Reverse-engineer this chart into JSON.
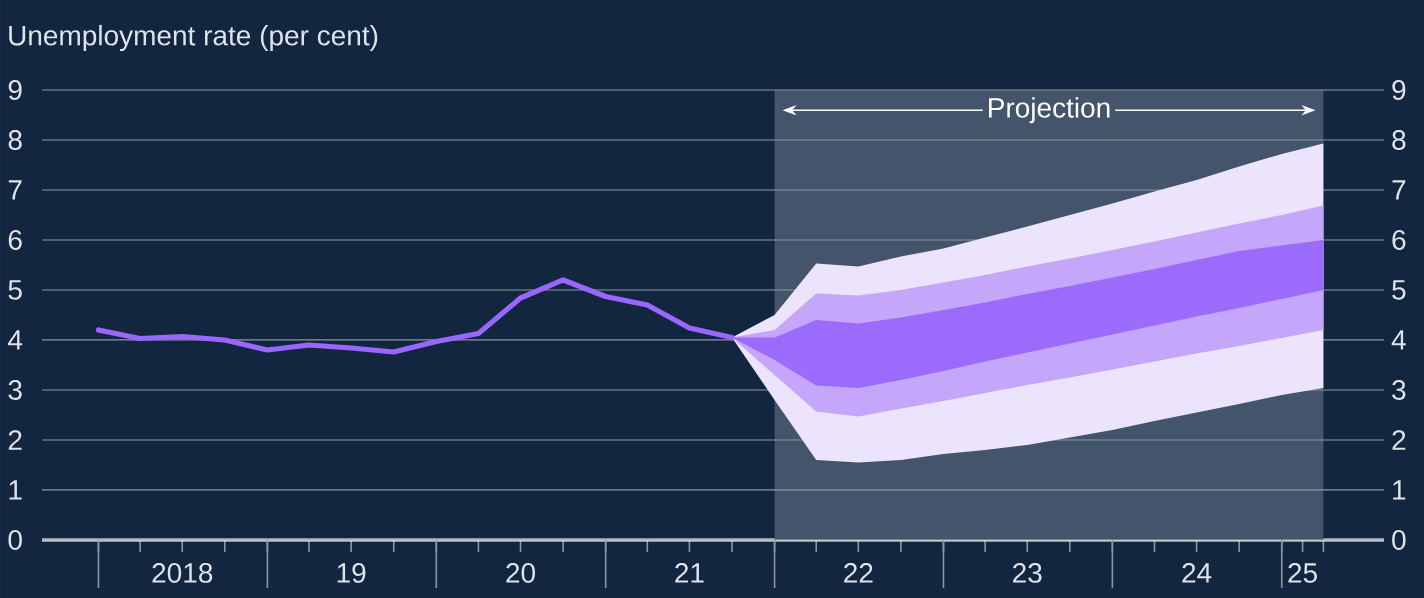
{
  "chart_data": {
    "type": "line",
    "ylabel": "Unemployment rate (per cent)",
    "xlim": [
      "2017-09-01",
      "2025-08-10"
    ],
    "xticks": [
      {
        "value": "2018-01-01",
        "label": null
      },
      {
        "value": "2018-04-01",
        "label": null
      },
      {
        "value": "2018-07-01",
        "label": "2018"
      },
      {
        "value": "2018-10-01",
        "label": null
      },
      {
        "value": "2019-01-01",
        "label": null
      },
      {
        "value": "2019-04-01",
        "label": null
      },
      {
        "value": "2019-07-01",
        "label": "19"
      },
      {
        "value": "2019-10-01",
        "label": null
      },
      {
        "value": "2020-01-01",
        "label": null
      },
      {
        "value": "2020-04-01",
        "label": null
      },
      {
        "value": "2020-07-01",
        "label": "20"
      },
      {
        "value": "2020-10-01",
        "label": null
      },
      {
        "value": "2021-01-01",
        "label": null
      },
      {
        "value": "2021-04-01",
        "label": null
      },
      {
        "value": "2021-07-01",
        "label": "21"
      },
      {
        "value": "2021-10-01",
        "label": null
      },
      {
        "value": "2022-01-01",
        "label": null
      },
      {
        "value": "2022-04-01",
        "label": null
      },
      {
        "value": "2022-07-01",
        "label": "22"
      },
      {
        "value": "2022-10-01",
        "label": null
      },
      {
        "value": "2023-01-01",
        "label": null
      },
      {
        "value": "2023-04-01",
        "label": null
      },
      {
        "value": "2023-07-01",
        "label": "23"
      },
      {
        "value": "2023-10-01",
        "label": null
      },
      {
        "value": "2024-01-01",
        "label": null
      },
      {
        "value": "2024-04-01",
        "label": null
      },
      {
        "value": "2024-07-01",
        "label": "24"
      },
      {
        "value": "2024-10-01",
        "label": null
      },
      {
        "value": "2025-01-01",
        "label": null
      },
      {
        "value": "2025-02-15",
        "label": "25"
      },
      {
        "value": "2025-04-01",
        "label": null
      }
    ],
    "ylim": [
      0,
      9
    ],
    "yticks": [
      0,
      1,
      2,
      3,
      4,
      5,
      6,
      7,
      8,
      9
    ],
    "y2lim": [
      0,
      9
    ],
    "y2ticks": [
      0,
      1,
      2,
      3,
      4,
      5,
      6,
      7,
      8,
      9
    ],
    "grid": "y",
    "bands": [
      {
        "axis": "x",
        "from": "2022-01-01",
        "to": "2025-04-01",
        "label": "Projection",
        "color": "#44546a"
      }
    ],
    "series": [
      {
        "type": "area",
        "color": "#ece4fd",
        "x": [
          "2021-10-01",
          "2022-01-01",
          "2022-04-01",
          "2022-07-01",
          "2022-10-01",
          "2023-01-01",
          "2023-04-01",
          "2023-07-01",
          "2023-10-01",
          "2024-01-01",
          "2024-04-01",
          "2024-07-01",
          "2024-10-01",
          "2025-01-01",
          "2025-04-01"
        ],
        "values": [
          null,
          null,
          null,
          null,
          null,
          null,
          null,
          null,
          null,
          null,
          null,
          null,
          null,
          null,
          null
        ],
        "lower": [
          4.05,
          2.8,
          1.6,
          1.55,
          1.6,
          1.72,
          1.8,
          1.9,
          2.05,
          2.2,
          2.38,
          2.55,
          2.72,
          2.9,
          3.04
        ],
        "upper": [
          4.05,
          4.5,
          5.53,
          5.47,
          5.67,
          5.83,
          6.05,
          6.27,
          6.5,
          6.73,
          6.97,
          7.2,
          7.47,
          7.72,
          7.93
        ]
      },
      {
        "type": "area",
        "color": "#c4a6fb",
        "x": [
          "2021-10-01",
          "2022-01-01",
          "2022-04-01",
          "2022-07-01",
          "2022-10-01",
          "2023-01-01",
          "2023-04-01",
          "2023-07-01",
          "2023-10-01",
          "2024-01-01",
          "2024-04-01",
          "2024-07-01",
          "2024-10-01",
          "2025-01-01",
          "2025-04-01"
        ],
        "values": [
          null,
          null,
          null,
          null,
          null,
          null,
          null,
          null,
          null,
          null,
          null,
          null,
          null,
          null,
          null
        ],
        "lower": [
          4.05,
          3.3,
          2.57,
          2.47,
          2.63,
          2.78,
          2.94,
          3.1,
          3.25,
          3.41,
          3.57,
          3.73,
          3.88,
          4.04,
          4.2
        ],
        "upper": [
          4.05,
          4.2,
          4.93,
          4.89,
          5.0,
          5.15,
          5.3,
          5.47,
          5.63,
          5.8,
          5.97,
          6.15,
          6.33,
          6.5,
          6.69
        ]
      },
      {
        "type": "area",
        "color": "#9b6bfb",
        "x": [
          "2021-10-01",
          "2022-01-01",
          "2022-04-01",
          "2022-07-01",
          "2022-10-01",
          "2023-01-01",
          "2023-04-01",
          "2023-07-01",
          "2023-10-01",
          "2024-01-01",
          "2024-04-01",
          "2024-07-01",
          "2024-10-01",
          "2025-01-01",
          "2025-04-01"
        ],
        "values": [
          null,
          null,
          null,
          null,
          null,
          null,
          null,
          null,
          null,
          null,
          null,
          null,
          null,
          null,
          null
        ],
        "lower": [
          4.05,
          3.6,
          3.09,
          3.04,
          3.2,
          3.38,
          3.57,
          3.75,
          3.93,
          4.11,
          4.29,
          4.47,
          4.64,
          4.82,
          5.0
        ],
        "upper": [
          4.05,
          4.05,
          4.4,
          4.33,
          4.45,
          4.6,
          4.75,
          4.92,
          5.08,
          5.25,
          5.42,
          5.6,
          5.78,
          5.89,
          6.0
        ]
      },
      {
        "color": "#9966ff",
        "x": [
          "2018-01-01",
          "2018-04-01",
          "2018-07-01",
          "2018-10-01",
          "2019-01-01",
          "2019-04-01",
          "2019-07-01",
          "2019-10-01",
          "2020-01-01",
          "2020-04-01",
          "2020-07-01",
          "2020-10-01",
          "2021-01-01",
          "2021-04-01",
          "2021-07-01",
          "2021-10-01"
        ],
        "values": [
          4.2,
          4.03,
          4.07,
          4.0,
          3.8,
          3.9,
          3.84,
          3.76,
          3.97,
          4.13,
          4.84,
          5.2,
          4.87,
          4.7,
          4.24,
          4.05
        ]
      }
    ]
  }
}
